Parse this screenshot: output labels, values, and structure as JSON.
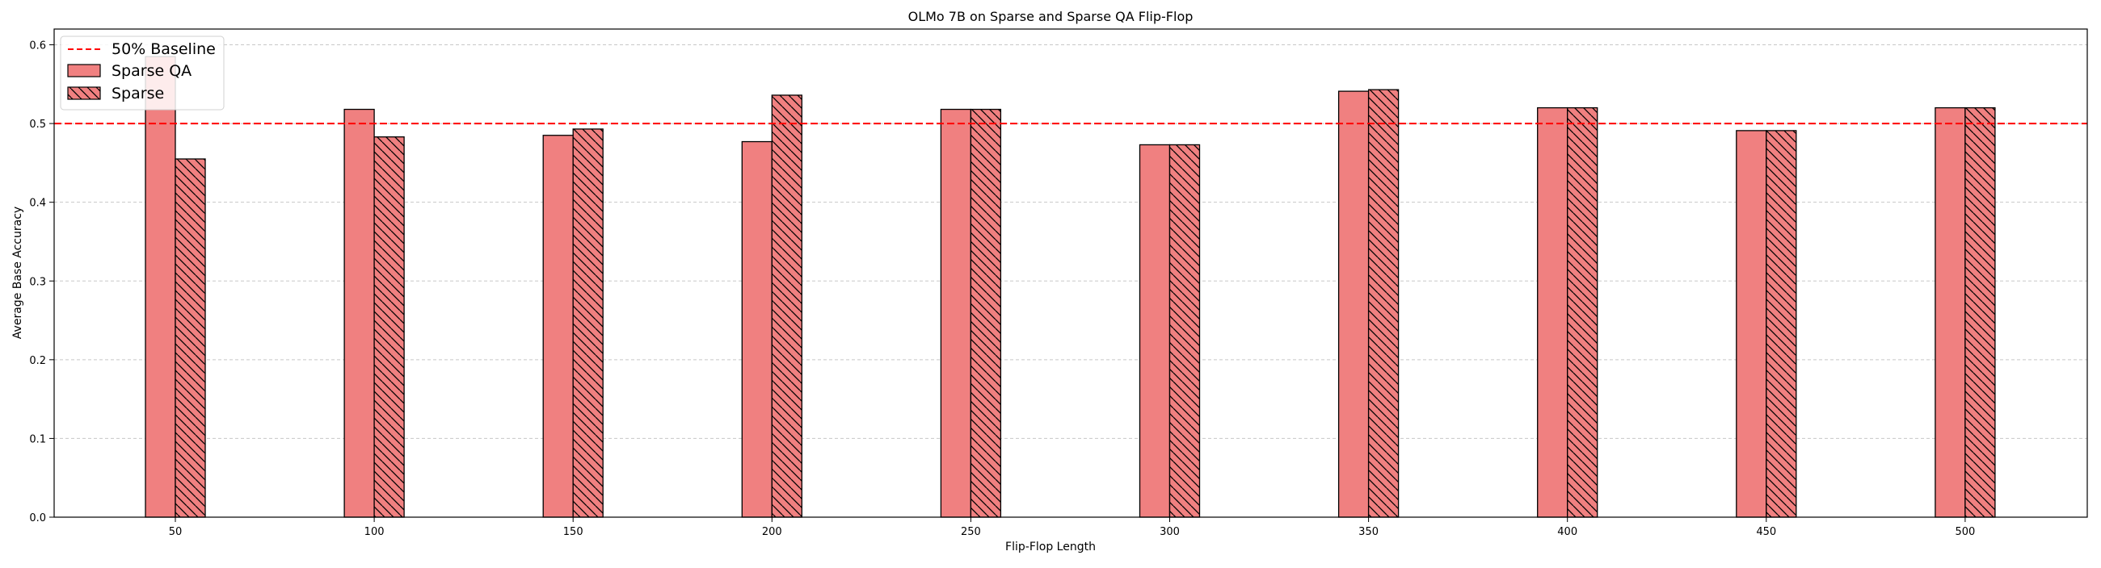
{
  "chart_data": {
    "type": "bar",
    "title": "OLMo 7B on Sparse and Sparse QA Flip-Flop",
    "xlabel": "Flip-Flop Length",
    "ylabel": "Average Base Accuracy",
    "categories": [
      "50",
      "100",
      "150",
      "200",
      "250",
      "300",
      "350",
      "400",
      "450",
      "500"
    ],
    "series": [
      {
        "name": "Sparse QA",
        "values": [
          0.585,
          0.518,
          0.485,
          0.477,
          0.518,
          0.473,
          0.541,
          0.52,
          0.491,
          0.52
        ],
        "color": "#f08080",
        "hatch": "none"
      },
      {
        "name": "Sparse",
        "values": [
          0.455,
          0.483,
          0.493,
          0.536,
          0.518,
          0.473,
          0.543,
          0.52,
          0.491,
          0.52
        ],
        "color": "#f08080",
        "hatch": "diagonal"
      }
    ],
    "baseline": {
      "label": "50% Baseline",
      "value": 0.5,
      "color": "#ff0000",
      "style": "dashed"
    },
    "ylim": [
      0,
      0.62
    ],
    "yticks": [
      "0.0",
      "0.1",
      "0.2",
      "0.3",
      "0.4",
      "0.5",
      "0.6"
    ],
    "grid": "horizontal-dashed",
    "legend_position": "top-left"
  }
}
